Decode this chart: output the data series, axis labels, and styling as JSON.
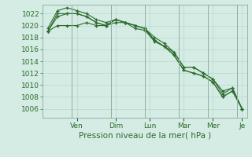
{
  "background_color": "#d4ece4",
  "grid_color": "#b8d8cc",
  "line_color": "#2d6b2d",
  "marker_color": "#2d6b2d",
  "xlabel": "Pression niveau de la mer( hPa )",
  "ylim": [
    1004.5,
    1023.5
  ],
  "yticks": [
    1006,
    1008,
    1010,
    1012,
    1014,
    1016,
    1018,
    1020,
    1022
  ],
  "x_day_labels": [
    "Ven",
    "Dim",
    "Lun",
    "Mar",
    "Mer",
    "Je"
  ],
  "x_day_positions": [
    3.0,
    7.0,
    10.5,
    14.0,
    17.0,
    20.0
  ],
  "n_points": 21,
  "series": [
    [
      1019.0,
      1021.5,
      1022.0,
      1022.0,
      1021.5,
      1020.5,
      1020.0,
      1021.0,
      1020.5,
      1019.5,
      1019.2,
      1017.3,
      1016.5,
      1015.0,
      1012.5,
      1012.0,
      1011.5,
      1010.5,
      1008.0,
      1009.0,
      1006.0
    ],
    [
      1019.0,
      1022.0,
      1022.0,
      1022.0,
      1021.5,
      1020.5,
      1020.0,
      1021.0,
      1020.5,
      1020.0,
      1019.5,
      1017.5,
      1016.5,
      1015.5,
      1013.0,
      1013.0,
      1012.0,
      1011.0,
      1008.5,
      1009.5,
      1006.0
    ],
    [
      1019.5,
      1022.5,
      1023.0,
      1022.5,
      1022.0,
      1021.0,
      1020.5,
      1021.0,
      1020.5,
      1020.0,
      1019.5,
      1018.0,
      1017.0,
      1015.5,
      1013.0,
      1013.0,
      1012.0,
      1011.0,
      1009.0,
      1009.5,
      1006.0
    ],
    [
      1019.0,
      1020.0,
      1020.0,
      1020.0,
      1020.5,
      1020.0,
      1020.0,
      1020.5,
      1020.5,
      1020.0,
      1019.5,
      1017.5,
      1016.5,
      1015.0,
      1012.5,
      1012.0,
      1011.5,
      1010.5,
      1008.0,
      1009.0,
      1006.0
    ]
  ],
  "vline_positions": [
    3.0,
    7.0,
    10.5,
    14.0,
    17.0,
    20.0
  ],
  "spine_color": "#8aaa9a",
  "xlabel_fontsize": 7.5,
  "ytick_fontsize": 6.5,
  "xtick_fontsize": 6.5
}
